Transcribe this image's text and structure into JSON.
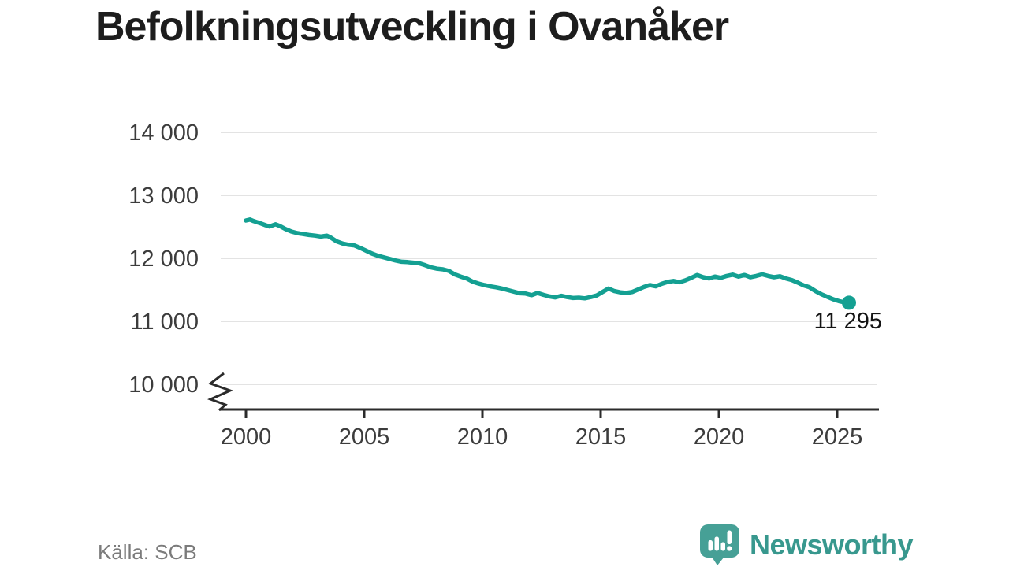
{
  "title": "Befolkningsutveckling i Ovanåker",
  "source": "Källa: SCB",
  "brand": {
    "name": "Newsworthy",
    "icon": "speech-bubble-with-bar-chart-and-exclamation",
    "text_color": "#38988e",
    "icon_color": "#46a096"
  },
  "chart_data": {
    "type": "line",
    "title": "Befolkningsutveckling i Ovanåker",
    "xlabel": "",
    "ylabel": "",
    "grid": "horizontal",
    "legend": "none",
    "axis_break_bottom_left": true,
    "line_color": "#14a092",
    "grid_color": "#e3e3e3",
    "axis_color": "#2b2b2b",
    "ylim": [
      10000,
      14000
    ],
    "xlim": [
      2000,
      2026.8
    ],
    "y_ticks": [
      {
        "value": 14000,
        "label": "14 000"
      },
      {
        "value": 13000,
        "label": "13 000"
      },
      {
        "value": 12000,
        "label": "12 000"
      },
      {
        "value": 11000,
        "label": "11 000"
      },
      {
        "value": 10000,
        "label": "10 000"
      }
    ],
    "x_ticks": [
      2000,
      2005,
      2010,
      2015,
      2020,
      2025
    ],
    "x_tick_labels": [
      "2000",
      "2005",
      "2010",
      "2015",
      "2020",
      "2025"
    ],
    "end_label": "11 295",
    "end_value": 11295,
    "points": [
      [
        2000.0,
        12600
      ],
      [
        2000.17,
        12615
      ],
      [
        2000.33,
        12590
      ],
      [
        2000.58,
        12560
      ],
      [
        2000.83,
        12525
      ],
      [
        2001.0,
        12505
      ],
      [
        2001.25,
        12540
      ],
      [
        2001.42,
        12515
      ],
      [
        2001.67,
        12465
      ],
      [
        2001.92,
        12425
      ],
      [
        2002.17,
        12400
      ],
      [
        2002.42,
        12385
      ],
      [
        2002.67,
        12370
      ],
      [
        2002.92,
        12360
      ],
      [
        2003.17,
        12345
      ],
      [
        2003.42,
        12360
      ],
      [
        2003.58,
        12330
      ],
      [
        2003.83,
        12270
      ],
      [
        2004.08,
        12235
      ],
      [
        2004.33,
        12215
      ],
      [
        2004.58,
        12205
      ],
      [
        2004.83,
        12165
      ],
      [
        2005.08,
        12120
      ],
      [
        2005.33,
        12075
      ],
      [
        2005.58,
        12040
      ],
      [
        2005.83,
        12015
      ],
      [
        2006.08,
        11990
      ],
      [
        2006.33,
        11965
      ],
      [
        2006.58,
        11945
      ],
      [
        2006.83,
        11940
      ],
      [
        2007.08,
        11930
      ],
      [
        2007.33,
        11920
      ],
      [
        2007.58,
        11890
      ],
      [
        2007.83,
        11855
      ],
      [
        2008.08,
        11835
      ],
      [
        2008.33,
        11825
      ],
      [
        2008.58,
        11800
      ],
      [
        2008.83,
        11745
      ],
      [
        2009.08,
        11710
      ],
      [
        2009.33,
        11680
      ],
      [
        2009.58,
        11630
      ],
      [
        2009.83,
        11600
      ],
      [
        2010.08,
        11575
      ],
      [
        2010.33,
        11555
      ],
      [
        2010.58,
        11540
      ],
      [
        2010.83,
        11520
      ],
      [
        2011.08,
        11495
      ],
      [
        2011.33,
        11470
      ],
      [
        2011.58,
        11445
      ],
      [
        2011.83,
        11440
      ],
      [
        2012.08,
        11415
      ],
      [
        2012.33,
        11450
      ],
      [
        2012.58,
        11420
      ],
      [
        2012.83,
        11395
      ],
      [
        2013.08,
        11380
      ],
      [
        2013.33,
        11405
      ],
      [
        2013.58,
        11385
      ],
      [
        2013.83,
        11370
      ],
      [
        2014.08,
        11375
      ],
      [
        2014.33,
        11365
      ],
      [
        2014.58,
        11385
      ],
      [
        2014.83,
        11410
      ],
      [
        2015.08,
        11465
      ],
      [
        2015.33,
        11520
      ],
      [
        2015.58,
        11480
      ],
      [
        2015.83,
        11460
      ],
      [
        2016.08,
        11450
      ],
      [
        2016.33,
        11465
      ],
      [
        2016.58,
        11505
      ],
      [
        2016.83,
        11545
      ],
      [
        2017.08,
        11575
      ],
      [
        2017.33,
        11555
      ],
      [
        2017.58,
        11595
      ],
      [
        2017.83,
        11625
      ],
      [
        2018.08,
        11640
      ],
      [
        2018.33,
        11620
      ],
      [
        2018.58,
        11650
      ],
      [
        2018.83,
        11690
      ],
      [
        2019.08,
        11735
      ],
      [
        2019.33,
        11700
      ],
      [
        2019.58,
        11680
      ],
      [
        2019.83,
        11710
      ],
      [
        2020.08,
        11690
      ],
      [
        2020.33,
        11720
      ],
      [
        2020.58,
        11740
      ],
      [
        2020.83,
        11710
      ],
      [
        2021.08,
        11735
      ],
      [
        2021.33,
        11700
      ],
      [
        2021.58,
        11720
      ],
      [
        2021.83,
        11745
      ],
      [
        2022.08,
        11720
      ],
      [
        2022.33,
        11700
      ],
      [
        2022.58,
        11715
      ],
      [
        2022.83,
        11680
      ],
      [
        2023.08,
        11655
      ],
      [
        2023.33,
        11615
      ],
      [
        2023.58,
        11570
      ],
      [
        2023.83,
        11540
      ],
      [
        2024.08,
        11480
      ],
      [
        2024.33,
        11430
      ],
      [
        2024.58,
        11390
      ],
      [
        2024.83,
        11350
      ],
      [
        2025.08,
        11320
      ],
      [
        2025.33,
        11300
      ],
      [
        2025.5,
        11295
      ]
    ]
  }
}
